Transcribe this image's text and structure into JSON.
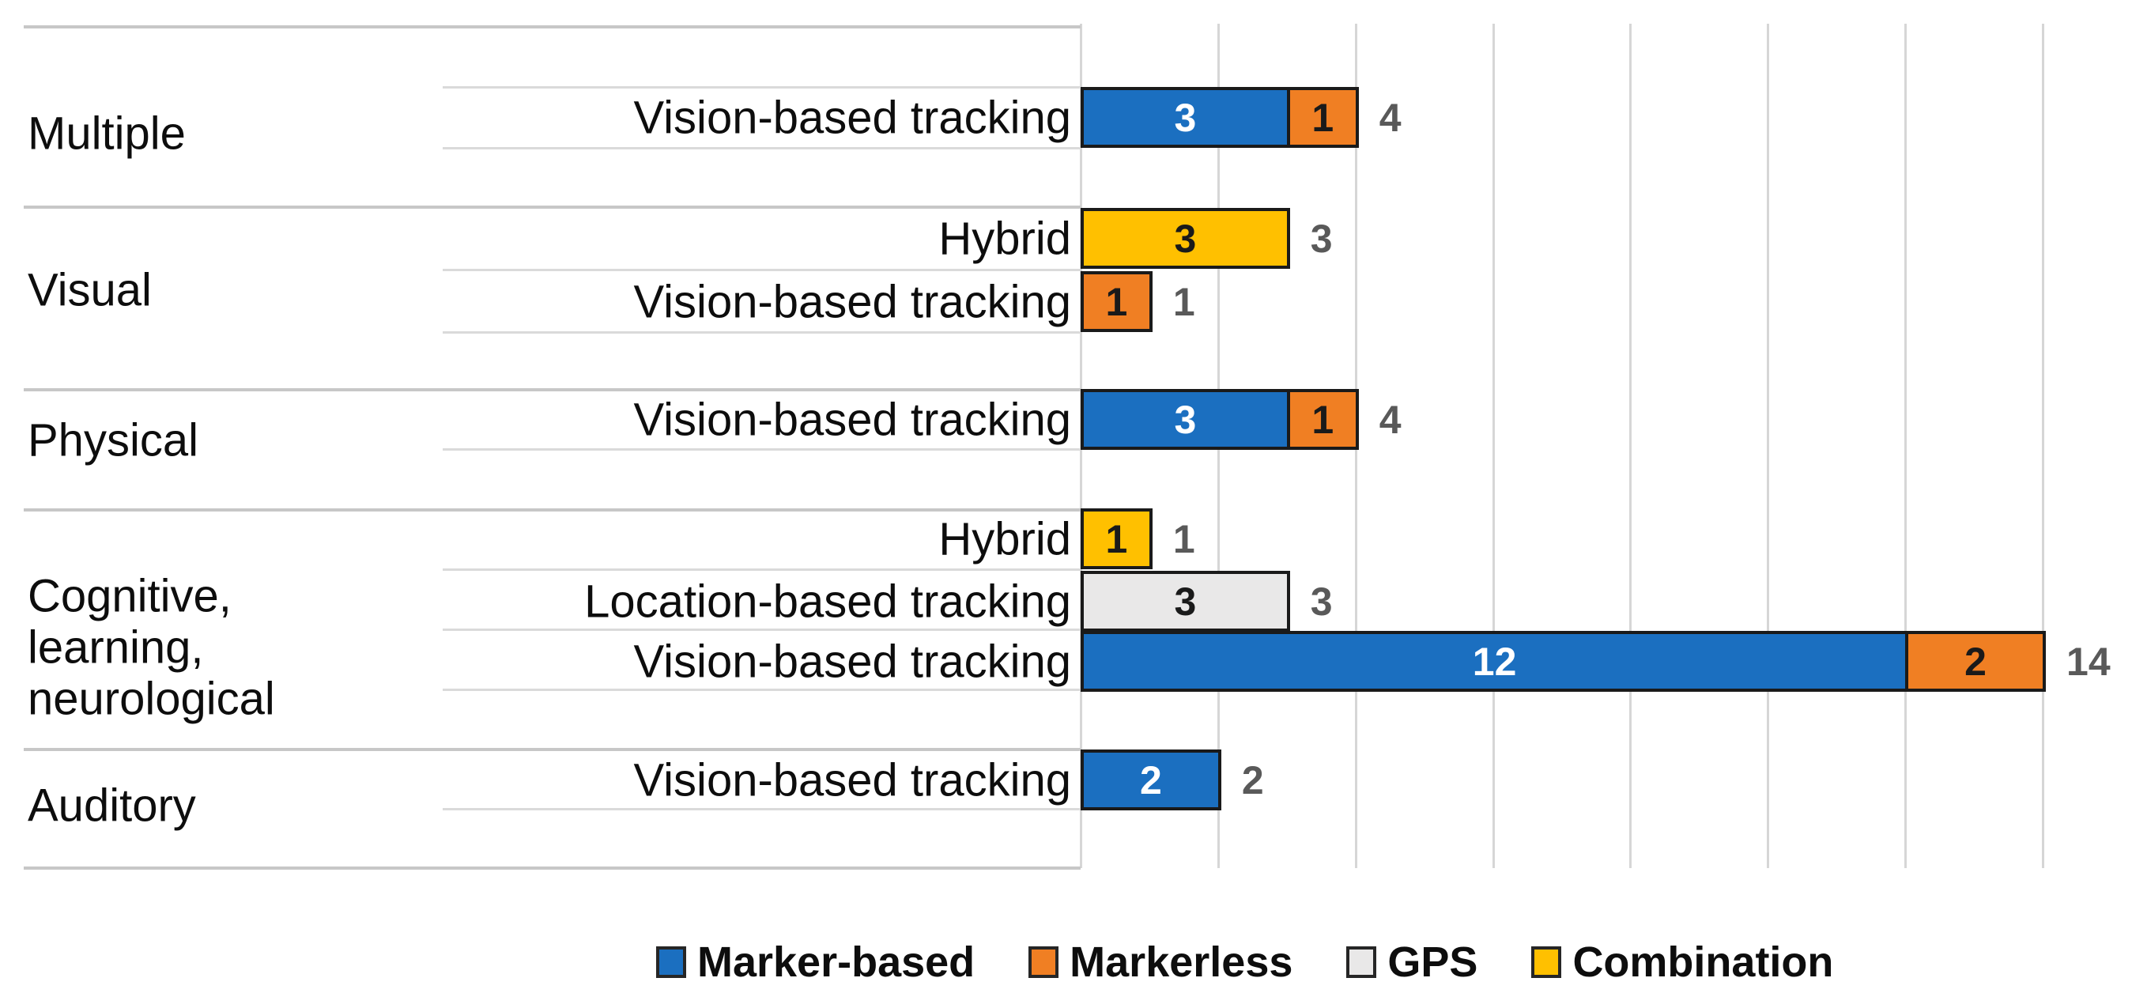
{
  "chart_data": {
    "type": "bar",
    "orientation": "horizontal",
    "stacked": true,
    "title": "",
    "x_axis": {
      "min": 0,
      "max": 16,
      "gridline_step": 2,
      "gridlines": [
        0,
        2,
        4,
        6,
        8,
        10,
        12,
        14
      ],
      "tick_labels_visible": false
    },
    "grid": "vertical-only",
    "legend_position": "bottom",
    "series_colors": {
      "Marker-based": "#1b6fc0",
      "Markerless": "#f07f23",
      "GPS": "#e9e8e8",
      "Combination": "#ffc000"
    },
    "value_label_colors": {
      "on_marker_based": "#ffffff",
      "on_other": "#1a1a1a",
      "total": "#595959"
    },
    "legend": [
      {
        "label": "Marker-based",
        "color": "#1b6fc0"
      },
      {
        "label": "Markerless",
        "color": "#f07f23"
      },
      {
        "label": "GPS",
        "color": "#e9e8e8"
      },
      {
        "label": "Combination",
        "color": "#ffc000"
      }
    ],
    "categories": [
      {
        "label": "Multiple",
        "rows": [
          {
            "label": "Vision-based tracking",
            "total": 4,
            "segments": [
              {
                "series": "Marker-based",
                "value": 3
              },
              {
                "series": "Markerless",
                "value": 1
              }
            ]
          }
        ]
      },
      {
        "label": "Visual",
        "rows": [
          {
            "label": "Hybrid",
            "total": 3,
            "segments": [
              {
                "series": "Combination",
                "value": 3
              }
            ]
          },
          {
            "label": "Vision-based tracking",
            "total": 1,
            "segments": [
              {
                "series": "Markerless",
                "value": 1
              }
            ]
          }
        ]
      },
      {
        "label": "Physical",
        "rows": [
          {
            "label": "Vision-based tracking",
            "total": 4,
            "segments": [
              {
                "series": "Marker-based",
                "value": 3
              },
              {
                "series": "Markerless",
                "value": 1
              }
            ]
          }
        ]
      },
      {
        "label": "Cognitive, learning, neurological",
        "rows": [
          {
            "label": "Hybrid",
            "total": 1,
            "segments": [
              {
                "series": "Combination",
                "value": 1
              }
            ]
          },
          {
            "label": "Location-based tracking",
            "total": 3,
            "segments": [
              {
                "series": "GPS",
                "value": 3
              }
            ]
          },
          {
            "label": "Vision-based tracking",
            "total": 14,
            "segments": [
              {
                "series": "Marker-based",
                "value": 12
              },
              {
                "series": "Markerless",
                "value": 2
              }
            ]
          }
        ]
      },
      {
        "label": "Auditory",
        "rows": [
          {
            "label": "Vision-based tracking",
            "total": 2,
            "segments": [
              {
                "series": "Marker-based",
                "value": 2
              }
            ]
          }
        ]
      }
    ]
  }
}
